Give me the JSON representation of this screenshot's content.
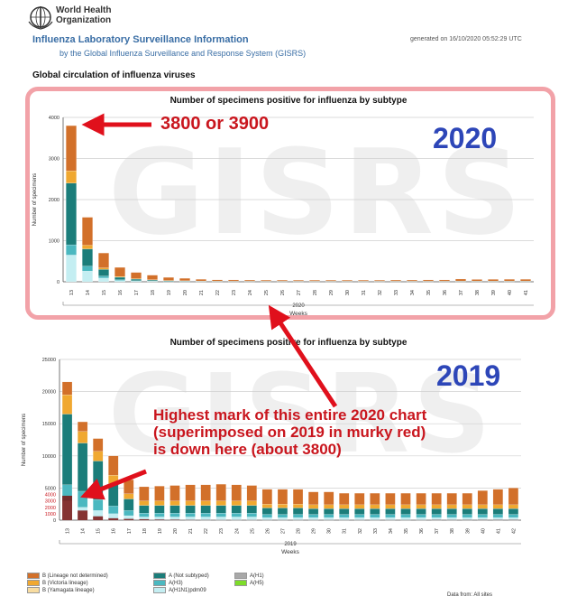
{
  "header": {
    "org_name_line1": "World Health",
    "org_name_line2": "Organization",
    "info_title": "Influenza Laboratory Surveillance Information",
    "info_subtitle": "by the Global Influenza Surveillance and Response System (GISRS)",
    "generated": "generated on 16/10/2020 05:52:29 UTC",
    "section_title": "Global circulation of influenza viruses"
  },
  "watermark": "GISRS",
  "annotations": {
    "label_top": "3800 or 3900",
    "year_top": "2020",
    "year_bottom": "2019",
    "note_line1": "Highest mark of this entire 2020 chart",
    "note_line2": "(superimposed on 2019 in murky red)",
    "note_line3": "is down here (about 3800)"
  },
  "legend": [
    {
      "label": "B (Lineage not determined)",
      "color": "#d2702a"
    },
    {
      "label": "A (Not subtyped)",
      "color": "#1b7d7a"
    },
    {
      "label": "A(H1)",
      "color": "#a8a8a8"
    },
    {
      "label": "B (Victoria lineage)",
      "color": "#f0a830"
    },
    {
      "label": "A(H3)",
      "color": "#4bb8c0"
    },
    {
      "label": "A(H5)",
      "color": "#7ddc2a"
    },
    {
      "label": "B (Yamagata lineage)",
      "color": "#f8dca0"
    },
    {
      "label": "A(H1N1)pdm09",
      "color": "#c4eef2"
    },
    {
      "label": "",
      "color": ""
    }
  ],
  "data_from": "Data from: All sites",
  "chart_data": [
    {
      "type": "bar",
      "title": "Number of specimens positive for influenza by subtype",
      "xlabel": "Weeks",
      "ylabel": "Number of specimens",
      "group_label": "2020",
      "categories": [
        "13",
        "14",
        "15",
        "16",
        "17",
        "18",
        "19",
        "20",
        "21",
        "22",
        "23",
        "24",
        "25",
        "26",
        "27",
        "28",
        "29",
        "30",
        "31",
        "32",
        "33",
        "34",
        "35",
        "36",
        "37",
        "38",
        "39",
        "40",
        "41"
      ],
      "ylim": [
        0,
        4000
      ],
      "yticks": [
        0,
        1000,
        2000,
        3000,
        4000
      ],
      "series": [
        {
          "name": "A(H1N1)pdm09",
          "color": "#c4eef2",
          "values": [
            650,
            260,
            90,
            30,
            15,
            10,
            6,
            5,
            4,
            3,
            3,
            3,
            3,
            3,
            3,
            3,
            3,
            3,
            3,
            3,
            3,
            3,
            3,
            3,
            3,
            3,
            3,
            3,
            3
          ]
        },
        {
          "name": "A(H3)",
          "color": "#4bb8c0",
          "values": [
            250,
            120,
            50,
            20,
            10,
            8,
            5,
            4,
            3,
            3,
            2,
            2,
            2,
            2,
            2,
            2,
            2,
            2,
            2,
            2,
            2,
            2,
            2,
            2,
            2,
            2,
            2,
            2,
            2
          ]
        },
        {
          "name": "A (Not subtyped)",
          "color": "#1b7d7a",
          "values": [
            1500,
            420,
            160,
            60,
            40,
            25,
            15,
            12,
            10,
            8,
            8,
            8,
            8,
            8,
            8,
            8,
            8,
            8,
            8,
            8,
            8,
            8,
            8,
            8,
            10,
            10,
            10,
            10,
            10
          ]
        },
        {
          "name": "B (Victoria lineage)",
          "color": "#f0a830",
          "values": [
            300,
            90,
            40,
            20,
            12,
            8,
            6,
            4,
            3,
            2,
            2,
            2,
            2,
            2,
            2,
            2,
            2,
            2,
            2,
            2,
            2,
            2,
            2,
            2,
            3,
            3,
            3,
            3,
            3
          ]
        },
        {
          "name": "B (Lineage not determined)",
          "color": "#d2702a",
          "values": [
            1100,
            680,
            360,
            220,
            150,
            110,
            75,
            60,
            40,
            30,
            30,
            28,
            26,
            26,
            25,
            25,
            25,
            25,
            25,
            25,
            28,
            28,
            30,
            30,
            48,
            38,
            40,
            42,
            42
          ]
        }
      ]
    },
    {
      "type": "bar",
      "title": "Number of specimens positive for influenza by subtype",
      "xlabel": "Weeks",
      "ylabel": "Number of specimens",
      "group_label": "2019",
      "categories": [
        "13",
        "14",
        "15",
        "16",
        "17",
        "18",
        "19",
        "20",
        "21",
        "22",
        "23",
        "24",
        "25",
        "26",
        "27",
        "28",
        "29",
        "30",
        "31",
        "32",
        "33",
        "34",
        "35",
        "36",
        "37",
        "38",
        "39",
        "40",
        "41",
        "42"
      ],
      "ylim": [
        0,
        25000
      ],
      "yticks": [
        0,
        5000,
        10000,
        15000,
        20000,
        25000
      ],
      "series": [
        {
          "name": "A(H1N1)pdm09",
          "color": "#c4eef2",
          "values": [
            3000,
            2000,
            1500,
            1000,
            700,
            500,
            500,
            500,
            500,
            500,
            500,
            500,
            500,
            400,
            400,
            400,
            400,
            400,
            400,
            400,
            400,
            400,
            400,
            400,
            400,
            400,
            400,
            400,
            400,
            400
          ]
        },
        {
          "name": "A(H3)",
          "color": "#4bb8c0",
          "values": [
            2500,
            2500,
            1700,
            1200,
            800,
            600,
            600,
            600,
            600,
            600,
            600,
            600,
            600,
            500,
            500,
            500,
            500,
            500,
            500,
            500,
            500,
            500,
            500,
            500,
            500,
            500,
            500,
            500,
            500,
            500
          ]
        },
        {
          "name": "A (Not subtyped)",
          "color": "#1b7d7a",
          "values": [
            11000,
            7500,
            6000,
            3500,
            1800,
            1200,
            1200,
            1200,
            1200,
            1200,
            1200,
            1200,
            1200,
            1000,
            1000,
            1000,
            900,
            900,
            900,
            900,
            900,
            900,
            900,
            900,
            900,
            900,
            900,
            900,
            900,
            900
          ]
        },
        {
          "name": "B (Victoria lineage)",
          "color": "#f0a830",
          "values": [
            3000,
            1800,
            1500,
            1300,
            800,
            700,
            700,
            700,
            700,
            700,
            700,
            700,
            700,
            600,
            600,
            600,
            600,
            600,
            600,
            600,
            600,
            600,
            600,
            600,
            600,
            600,
            600,
            600,
            600,
            600
          ]
        },
        {
          "name": "B (Lineage not determined)",
          "color": "#d2702a",
          "values": [
            2000,
            1500,
            2000,
            3000,
            2200,
            2200,
            2300,
            2400,
            2500,
            2500,
            2600,
            2500,
            2400,
            2300,
            2300,
            2300,
            2000,
            2000,
            1800,
            1800,
            1800,
            1800,
            1800,
            1800,
            1800,
            1800,
            1800,
            2200,
            2400,
            2600
          ]
        }
      ],
      "overlay": {
        "name": "2020",
        "color": "#7a1210",
        "values": [
          3800,
          1500,
          600,
          300,
          200,
          150,
          100,
          80,
          50,
          40,
          30,
          30,
          30,
          30,
          30,
          30,
          30,
          30,
          30,
          30,
          30,
          30,
          30,
          30,
          50,
          40,
          45,
          50,
          50,
          50
        ]
      }
    }
  ]
}
